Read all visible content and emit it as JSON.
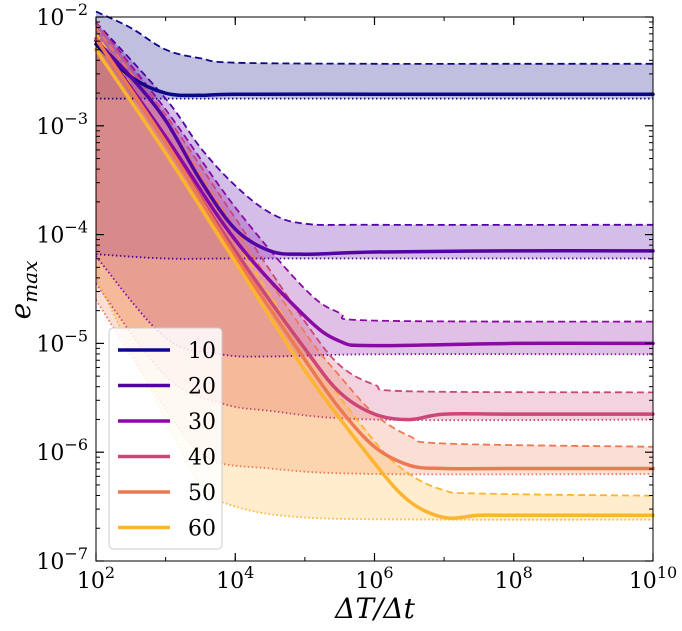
{
  "chart_data": {
    "type": "line",
    "title": "",
    "xlabel": "ΔT/Δt",
    "ylabel": "e_max",
    "xscale": "log",
    "yscale": "log",
    "xlim_log10": [
      2,
      10
    ],
    "ylim_log10": [
      -7,
      -2
    ],
    "x_ticks": [
      {
        "base": "10",
        "exp": "2",
        "value_log10": 2
      },
      {
        "base": "10",
        "exp": "4",
        "value_log10": 4
      },
      {
        "base": "10",
        "exp": "6",
        "value_log10": 6
      },
      {
        "base": "10",
        "exp": "8",
        "value_log10": 8
      },
      {
        "base": "10",
        "exp": "10",
        "value_log10": 10
      }
    ],
    "y_ticks": [
      {
        "base": "10",
        "exp": "−7",
        "value_log10": -7
      },
      {
        "base": "10",
        "exp": "−6",
        "value_log10": -6
      },
      {
        "base": "10",
        "exp": "−5",
        "value_log10": -5
      },
      {
        "base": "10",
        "exp": "−4",
        "value_log10": -4
      },
      {
        "base": "10",
        "exp": "−3",
        "value_log10": -3
      },
      {
        "base": "10",
        "exp": "−2",
        "value_log10": -2
      }
    ],
    "legend_position": "lower-left",
    "series": [
      {
        "name": "10",
        "color": "#0d0887",
        "median": [
          [
            2,
            -2.25
          ],
          [
            2.5,
            -2.55
          ],
          [
            3,
            -2.7
          ],
          [
            3.5,
            -2.72
          ],
          [
            4,
            -2.71
          ],
          [
            6,
            -2.71
          ],
          [
            8,
            -2.71
          ],
          [
            10,
            -2.71
          ]
        ],
        "upper": [
          [
            2,
            -1.95
          ],
          [
            2.5,
            -2.1
          ],
          [
            3,
            -2.3
          ],
          [
            3.5,
            -2.38
          ],
          [
            4,
            -2.42
          ],
          [
            6,
            -2.43
          ],
          [
            8,
            -2.43
          ],
          [
            10,
            -2.43
          ]
        ],
        "lower": [
          [
            2,
            -2.75
          ],
          [
            3,
            -2.75
          ],
          [
            6,
            -2.75
          ],
          [
            10,
            -2.75
          ]
        ]
      },
      {
        "name": "20",
        "color": "#5302a3",
        "median": [
          [
            2,
            -2.22
          ],
          [
            2.5,
            -2.55
          ],
          [
            3,
            -2.95
          ],
          [
            3.5,
            -3.5
          ],
          [
            4,
            -3.95
          ],
          [
            4.5,
            -4.15
          ],
          [
            5,
            -4.18
          ],
          [
            6,
            -4.16
          ],
          [
            8,
            -4.15
          ],
          [
            10,
            -4.15
          ]
        ],
        "upper": [
          [
            2,
            -2.05
          ],
          [
            3,
            -2.75
          ],
          [
            3.5,
            -3.2
          ],
          [
            4,
            -3.55
          ],
          [
            4.5,
            -3.8
          ],
          [
            5,
            -3.9
          ],
          [
            6,
            -3.91
          ],
          [
            10,
            -3.91
          ]
        ],
        "lower": [
          [
            2,
            -4.18
          ],
          [
            3,
            -4.22
          ],
          [
            4,
            -4.22
          ],
          [
            6,
            -4.22
          ],
          [
            10,
            -4.22
          ]
        ]
      },
      {
        "name": "30",
        "color": "#8b0aa5",
        "median": [
          [
            2,
            -2.2
          ],
          [
            3,
            -3.1
          ],
          [
            4,
            -4.05
          ],
          [
            5,
            -4.75
          ],
          [
            5.5,
            -4.98
          ],
          [
            6,
            -5.02
          ],
          [
            8,
            -5.0
          ],
          [
            10,
            -5.0
          ]
        ],
        "upper": [
          [
            2,
            -2.05
          ],
          [
            3,
            -2.85
          ],
          [
            4,
            -3.75
          ],
          [
            5,
            -4.5
          ],
          [
            5.5,
            -4.72
          ],
          [
            6,
            -4.79
          ],
          [
            10,
            -4.8
          ]
        ],
        "lower": [
          [
            2,
            -4.2
          ],
          [
            3,
            -4.95
          ],
          [
            3.8,
            -5.1
          ],
          [
            4.5,
            -5.12
          ],
          [
            6,
            -5.1
          ],
          [
            10,
            -5.1
          ]
        ]
      },
      {
        "name": "40",
        "color": "#cc4778",
        "median": [
          [
            2,
            -2.2
          ],
          [
            3,
            -3.15
          ],
          [
            4,
            -4.15
          ],
          [
            5,
            -5.05
          ],
          [
            5.5,
            -5.45
          ],
          [
            6,
            -5.65
          ],
          [
            6.5,
            -5.7
          ],
          [
            7,
            -5.65
          ],
          [
            8,
            -5.65
          ],
          [
            10,
            -5.65
          ]
        ],
        "upper": [
          [
            2,
            -2.05
          ],
          [
            3,
            -2.9
          ],
          [
            4,
            -3.85
          ],
          [
            5,
            -4.8
          ],
          [
            5.5,
            -5.2
          ],
          [
            6,
            -5.38
          ],
          [
            6.5,
            -5.44
          ],
          [
            10,
            -5.45
          ]
        ],
        "lower": [
          [
            2,
            -4.45
          ],
          [
            3,
            -5.3
          ],
          [
            3.8,
            -5.55
          ],
          [
            4.5,
            -5.62
          ],
          [
            6,
            -5.7
          ],
          [
            10,
            -5.7
          ]
        ]
      },
      {
        "name": "50",
        "color": "#ed7953",
        "median": [
          [
            2,
            -2.2
          ],
          [
            3,
            -3.15
          ],
          [
            4,
            -4.2
          ],
          [
            5,
            -5.15
          ],
          [
            5.5,
            -5.6
          ],
          [
            6,
            -5.95
          ],
          [
            6.5,
            -6.12
          ],
          [
            7,
            -6.15
          ],
          [
            8,
            -6.15
          ],
          [
            10,
            -6.15
          ]
        ],
        "upper": [
          [
            2,
            -2.1
          ],
          [
            3,
            -2.95
          ],
          [
            4,
            -3.95
          ],
          [
            5,
            -4.9
          ],
          [
            5.5,
            -5.3
          ],
          [
            6,
            -5.65
          ],
          [
            6.5,
            -5.85
          ],
          [
            7,
            -5.92
          ],
          [
            10,
            -5.95
          ]
        ],
        "lower": [
          [
            2,
            -4.6
          ],
          [
            3,
            -5.6
          ],
          [
            3.6,
            -6.05
          ],
          [
            4.5,
            -6.15
          ],
          [
            6,
            -6.2
          ],
          [
            10,
            -6.2
          ]
        ]
      },
      {
        "name": "60",
        "color": "#fdb42f",
        "median": [
          [
            2,
            -2.3
          ],
          [
            3,
            -3.25
          ],
          [
            4,
            -4.25
          ],
          [
            5,
            -5.25
          ],
          [
            6,
            -6.1
          ],
          [
            6.5,
            -6.45
          ],
          [
            7,
            -6.6
          ],
          [
            7.5,
            -6.58
          ],
          [
            8,
            -6.58
          ],
          [
            10,
            -6.58
          ]
        ],
        "upper": [
          [
            2,
            -2.15
          ],
          [
            3,
            -3.1
          ],
          [
            4,
            -4.05
          ],
          [
            5,
            -5.05
          ],
          [
            6,
            -5.9
          ],
          [
            6.5,
            -6.2
          ],
          [
            7,
            -6.35
          ],
          [
            7.5,
            -6.38
          ],
          [
            10,
            -6.4
          ]
        ],
        "lower": [
          [
            2,
            -4.4
          ],
          [
            3,
            -5.7
          ],
          [
            3.5,
            -6.3
          ],
          [
            4,
            -6.5
          ],
          [
            5,
            -6.6
          ],
          [
            7,
            -6.62
          ],
          [
            10,
            -6.62
          ]
        ]
      }
    ]
  }
}
